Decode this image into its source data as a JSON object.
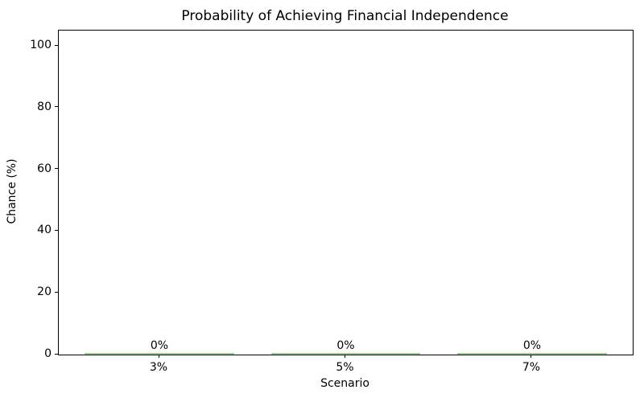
{
  "chart_data": {
    "type": "bar",
    "title": "Probability of Achieving Financial Independence",
    "xlabel": "Scenario",
    "ylabel": "Chance (%)",
    "categories": [
      "3%",
      "5%",
      "7%"
    ],
    "values": [
      0,
      0,
      0
    ],
    "bar_labels": [
      "0%",
      "0%",
      "0%"
    ],
    "yticks": [
      0,
      20,
      40,
      60,
      80,
      100
    ],
    "ylim": [
      0,
      105
    ],
    "bar_color": "#97d097",
    "axis_color": "#000000",
    "grid": false,
    "legend": "none"
  }
}
